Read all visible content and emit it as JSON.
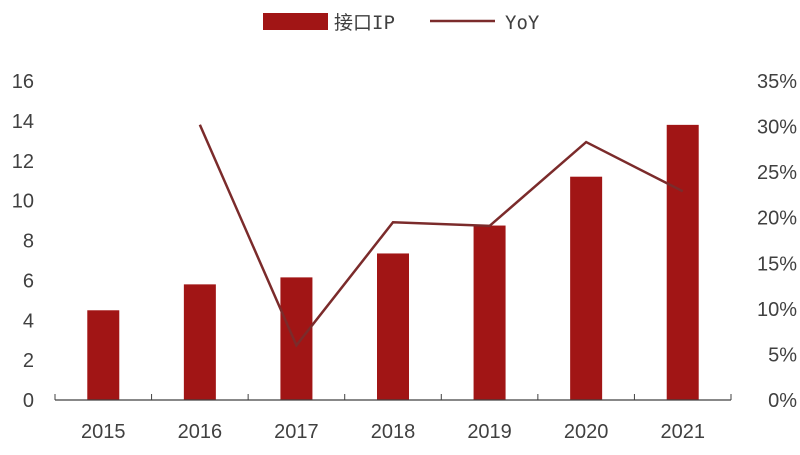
{
  "chart_data": {
    "type": "bar+line",
    "categories": [
      "2015",
      "2016",
      "2017",
      "2018",
      "2019",
      "2020",
      "2021"
    ],
    "series": [
      {
        "name": "接口IP",
        "type": "bar",
        "axis": "left",
        "values": [
          4.5,
          5.8,
          6.15,
          7.35,
          8.75,
          11.2,
          13.8
        ],
        "color": "#A11515"
      },
      {
        "name": "YoY",
        "type": "line",
        "axis": "right",
        "values": [
          null,
          30.2,
          6.0,
          19.5,
          19.1,
          28.3,
          22.9
        ],
        "color": "#7B2B2B"
      }
    ],
    "y_left": {
      "range": [
        0,
        16
      ],
      "ticks": [
        "0",
        "2",
        "4",
        "6",
        "8",
        "10",
        "12",
        "14",
        "16"
      ]
    },
    "y_right": {
      "range": [
        0,
        35
      ],
      "ticks": [
        "0%",
        "5%",
        "10%",
        "15%",
        "20%",
        "25%",
        "30%",
        "35%"
      ]
    },
    "legend_position": "top",
    "grid": false
  }
}
